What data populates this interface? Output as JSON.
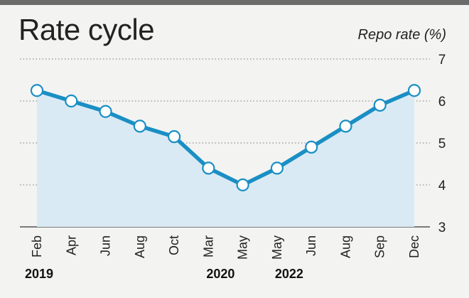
{
  "chart_data": {
    "type": "line",
    "title": "Rate cycle",
    "ylabel": "Repo rate (%)",
    "xlabel": "",
    "ylim": [
      3,
      7
    ],
    "yticks": [
      "7",
      "6",
      "5",
      "4",
      "3"
    ],
    "categories": [
      "Feb",
      "Apr",
      "Jun",
      "Aug",
      "Oct",
      "Mar",
      "May",
      "May",
      "Jun",
      "Aug",
      "Sep",
      "Dec"
    ],
    "year_labels": [
      {
        "label": "2019",
        "index": 0
      },
      {
        "label": "2020",
        "index": 5
      },
      {
        "label": "2022",
        "index": 7
      }
    ],
    "series": [
      {
        "name": "",
        "values": [
          6.25,
          6.0,
          5.75,
          5.4,
          5.15,
          4.4,
          4.0,
          4.4,
          4.9,
          5.4,
          5.9,
          6.25
        ]
      }
    ],
    "grid": true,
    "colors": {
      "line": "#1a8fc4",
      "area": "#d9eaf4",
      "marker_fill": "#ffffff",
      "grid": "#777777",
      "background": "#f3f3f2"
    }
  }
}
